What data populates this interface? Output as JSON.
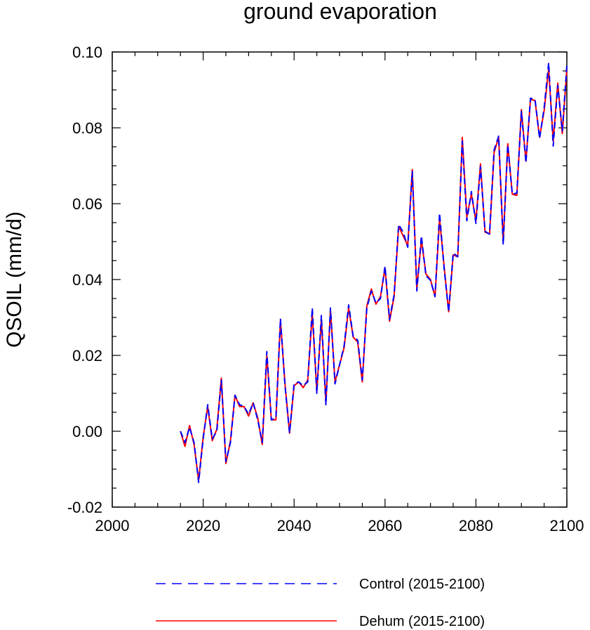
{
  "chart_data": {
    "type": "line",
    "title": "ground evaporation",
    "xlabel": "",
    "ylabel": "QSOIL  (mm/d)",
    "xlim": [
      2000,
      2100
    ],
    "ylim": [
      -0.02,
      0.1
    ],
    "xticks": [
      2000,
      2020,
      2040,
      2060,
      2080,
      2100
    ],
    "xtick_labels": [
      "2000",
      "2020",
      "2040",
      "2060",
      "2080",
      "2100"
    ],
    "yticks": [
      -0.02,
      0.0,
      0.02,
      0.04,
      0.06,
      0.08,
      0.1
    ],
    "ytick_labels": [
      "-0.02",
      "0.00",
      "0.02",
      "0.04",
      "0.06",
      "0.08",
      "0.10"
    ],
    "x": [
      2015,
      2016,
      2017,
      2018,
      2019,
      2020,
      2021,
      2022,
      2023,
      2024,
      2025,
      2026,
      2027,
      2028,
      2029,
      2030,
      2031,
      2032,
      2033,
      2034,
      2035,
      2036,
      2037,
      2038,
      2039,
      2040,
      2041,
      2042,
      2043,
      2044,
      2045,
      2046,
      2047,
      2048,
      2049,
      2050,
      2051,
      2052,
      2053,
      2054,
      2055,
      2056,
      2057,
      2058,
      2059,
      2060,
      2061,
      2062,
      2063,
      2064,
      2065,
      2066,
      2067,
      2068,
      2069,
      2070,
      2071,
      2072,
      2073,
      2074,
      2075,
      2076,
      2077,
      2078,
      2079,
      2080,
      2081,
      2082,
      2083,
      2084,
      2085,
      2086,
      2087,
      2088,
      2089,
      2090,
      2091,
      2092,
      2093,
      2094,
      2095,
      2096,
      2097,
      2098,
      2099,
      2100
    ],
    "series": [
      {
        "name": "Control (2015-2100)",
        "color": "#0000ff",
        "style": "dashed",
        "values": [
          0.0,
          -0.003,
          0.001,
          -0.003,
          -0.0135,
          -0.002,
          0.007,
          -0.002,
          0.0,
          0.0135,
          -0.008,
          -0.003,
          0.0095,
          0.007,
          0.0065,
          0.0045,
          0.0075,
          0.003,
          -0.003,
          0.021,
          0.003,
          0.0035,
          0.0297,
          0.012,
          -0.0005,
          0.0125,
          0.013,
          0.012,
          0.013,
          0.0325,
          0.01,
          0.0305,
          0.007,
          0.0325,
          0.0125,
          0.0175,
          0.0225,
          0.0333,
          0.025,
          0.024,
          0.0135,
          0.0325,
          0.037,
          0.0338,
          0.035,
          0.0435,
          0.0295,
          0.036,
          0.0545,
          0.0525,
          0.0485,
          0.0685,
          0.037,
          0.0515,
          0.041,
          0.0398,
          0.0355,
          0.0575,
          0.043,
          0.0315,
          0.047,
          0.046,
          0.0765,
          0.0555,
          0.0632,
          0.0548,
          0.0698,
          0.0527,
          0.052,
          0.0742,
          0.0778,
          0.0492,
          0.0755,
          0.0625,
          0.0628,
          0.0843,
          0.0708,
          0.0878,
          0.0875,
          0.0772,
          0.0852,
          0.0972,
          0.0752,
          0.0912,
          0.0792,
          0.0965
        ]
      },
      {
        "name": "Dehum (2015-2100)",
        "color": "#ff0000",
        "style": "solid",
        "values": [
          0.0,
          -0.004,
          0.0015,
          -0.0035,
          -0.013,
          -0.0015,
          0.0065,
          -0.0025,
          0.0005,
          0.014,
          -0.0085,
          -0.0025,
          0.0095,
          0.0065,
          0.0065,
          0.004,
          0.0075,
          0.0035,
          -0.0035,
          0.02,
          0.003,
          0.003,
          0.0292,
          0.0125,
          -0.0005,
          0.012,
          0.013,
          0.0115,
          0.0135,
          0.031,
          0.0105,
          0.0295,
          0.0075,
          0.032,
          0.013,
          0.0175,
          0.022,
          0.0325,
          0.0248,
          0.0235,
          0.013,
          0.033,
          0.0375,
          0.0335,
          0.0355,
          0.043,
          0.029,
          0.0355,
          0.054,
          0.0515,
          0.049,
          0.069,
          0.0375,
          0.0505,
          0.0415,
          0.04,
          0.0355,
          0.056,
          0.0435,
          0.0315,
          0.0465,
          0.046,
          0.0775,
          0.0565,
          0.0625,
          0.0555,
          0.0705,
          0.0525,
          0.052,
          0.0735,
          0.0775,
          0.05,
          0.0758,
          0.0625,
          0.0622,
          0.0848,
          0.0712,
          0.0875,
          0.0872,
          0.0775,
          0.0845,
          0.0955,
          0.0765,
          0.0918,
          0.0785,
          0.0955
        ]
      }
    ],
    "legend": {
      "placement": "bottom",
      "entries": [
        "Control (2015-2100)",
        "Dehum (2015-2100)"
      ]
    },
    "grid": false
  }
}
